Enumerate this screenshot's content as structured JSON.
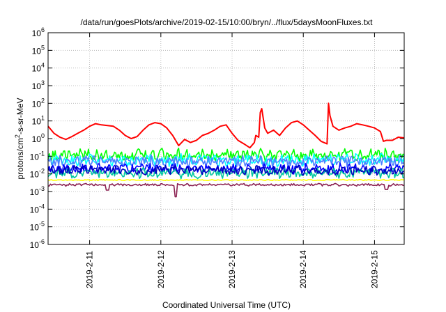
{
  "chart_data": {
    "type": "line",
    "title": "/data/run/goesPlots/archive/2019-02-15/10:00/bryn/../flux/5daysMoonFluxes.txt",
    "xlabel": "Coordinated Universal Time (UTC)",
    "ylabel": {
      "prefix": "protons/cm",
      "sup": "2",
      "suffix": "-s-sr-MeV"
    },
    "y_scale": "log",
    "ylim": [
      1e-06,
      1000000.0
    ],
    "y_ticks": [
      {
        "value": 1e-06,
        "base": "10",
        "exp": "-6"
      },
      {
        "value": 1e-05,
        "base": "10",
        "exp": "-5"
      },
      {
        "value": 0.0001,
        "base": "10",
        "exp": "-4"
      },
      {
        "value": 0.001,
        "base": "10",
        "exp": "-3"
      },
      {
        "value": 0.01,
        "base": "10",
        "exp": "-2"
      },
      {
        "value": 0.1,
        "base": "10",
        "exp": "-1"
      },
      {
        "value": 1.0,
        "base": "10",
        "exp": "0"
      },
      {
        "value": 10.0,
        "base": "10",
        "exp": "1"
      },
      {
        "value": 100.0,
        "base": "10",
        "exp": "2"
      },
      {
        "value": 1000.0,
        "base": "10",
        "exp": "3"
      },
      {
        "value": 10000.0,
        "base": "10",
        "exp": "4"
      },
      {
        "value": 100000.0,
        "base": "10",
        "exp": "5"
      },
      {
        "value": 1000000.0,
        "base": "10",
        "exp": "6"
      }
    ],
    "xlim": [
      "2019-02-10 10:00",
      "2019-02-15 10:00"
    ],
    "x_ticks": [
      {
        "value": "2019-02-11 00:00",
        "label": "2019-2-11"
      },
      {
        "value": "2019-02-12 00:00",
        "label": "2019-2-12"
      },
      {
        "value": "2019-02-13 00:00",
        "label": "2019-2-13"
      },
      {
        "value": "2019-02-14 00:00",
        "label": "2019-2-14"
      },
      {
        "value": "2019-02-15 00:00",
        "label": "2019-2-15"
      }
    ],
    "grid": true,
    "legend": "none",
    "series": [
      {
        "color": "#ff0000",
        "values": [
          [
            "2019-02-10 10:00",
            5
          ],
          [
            "2019-02-10 12:00",
            2
          ],
          [
            "2019-02-10 14:00",
            1.2
          ],
          [
            "2019-02-10 16:00",
            0.9
          ],
          [
            "2019-02-10 18:00",
            1.3
          ],
          [
            "2019-02-10 20:00",
            2
          ],
          [
            "2019-02-10 22:00",
            3
          ],
          [
            "2019-02-11 00:00",
            5
          ],
          [
            "2019-02-11 02:00",
            7
          ],
          [
            "2019-02-11 04:00",
            6
          ],
          [
            "2019-02-11 06:00",
            5.5
          ],
          [
            "2019-02-11 08:00",
            5
          ],
          [
            "2019-02-11 10:00",
            3
          ],
          [
            "2019-02-11 12:00",
            1.5
          ],
          [
            "2019-02-11 14:00",
            1
          ],
          [
            "2019-02-11 16:00",
            1.3
          ],
          [
            "2019-02-11 18:00",
            3
          ],
          [
            "2019-02-11 20:00",
            6
          ],
          [
            "2019-02-11 22:00",
            8
          ],
          [
            "2019-02-12 00:00",
            7
          ],
          [
            "2019-02-12 02:00",
            4
          ],
          [
            "2019-02-12 04:00",
            1.5
          ],
          [
            "2019-02-12 06:00",
            0.4
          ],
          [
            "2019-02-12 08:00",
            0.9
          ],
          [
            "2019-02-12 10:00",
            0.6
          ],
          [
            "2019-02-12 12:00",
            0.8
          ],
          [
            "2019-02-12 14:00",
            1.5
          ],
          [
            "2019-02-12 16:00",
            2
          ],
          [
            "2019-02-12 18:00",
            3
          ],
          [
            "2019-02-12 20:00",
            5
          ],
          [
            "2019-02-12 22:00",
            6
          ],
          [
            "2019-02-13 00:00",
            2
          ],
          [
            "2019-02-13 02:00",
            0.8
          ],
          [
            "2019-02-13 04:00",
            0.5
          ],
          [
            "2019-02-13 06:00",
            0.3
          ],
          [
            "2019-02-13 07:30",
            0.6
          ],
          [
            "2019-02-13 08:00",
            1.5
          ],
          [
            "2019-02-13 09:00",
            1.2
          ],
          [
            "2019-02-13 09:30",
            30
          ],
          [
            "2019-02-13 10:00",
            50
          ],
          [
            "2019-02-13 11:00",
            4
          ],
          [
            "2019-02-13 12:00",
            2
          ],
          [
            "2019-02-13 14:00",
            3
          ],
          [
            "2019-02-13 16:00",
            1.5
          ],
          [
            "2019-02-13 18:00",
            4
          ],
          [
            "2019-02-13 20:00",
            8
          ],
          [
            "2019-02-13 22:00",
            10
          ],
          [
            "2019-02-14 00:00",
            6
          ],
          [
            "2019-02-14 02:00",
            3
          ],
          [
            "2019-02-14 04:00",
            1.5
          ],
          [
            "2019-02-14 06:00",
            0.7
          ],
          [
            "2019-02-14 08:00",
            0.5
          ],
          [
            "2019-02-14 08:30",
            100
          ],
          [
            "2019-02-14 09:00",
            20
          ],
          [
            "2019-02-14 10:00",
            5
          ],
          [
            "2019-02-14 12:00",
            3
          ],
          [
            "2019-02-14 14:00",
            4
          ],
          [
            "2019-02-14 16:00",
            5
          ],
          [
            "2019-02-14 18:00",
            7
          ],
          [
            "2019-02-14 20:00",
            6
          ],
          [
            "2019-02-14 22:00",
            5
          ],
          [
            "2019-02-15 00:00",
            4
          ],
          [
            "2019-02-15 02:00",
            2.5
          ],
          [
            "2019-02-15 03:00",
            0.7
          ],
          [
            "2019-02-15 04:00",
            0.8
          ],
          [
            "2019-02-15 06:00",
            0.8
          ],
          [
            "2019-02-15 08:00",
            1.2
          ],
          [
            "2019-02-15 10:00",
            1.1
          ]
        ]
      },
      {
        "color": "#00ff00",
        "base": 0.12,
        "amp": 0.6,
        "seed": 3
      },
      {
        "color": "#00ffff",
        "base": 0.06,
        "amp": 0.6,
        "seed": 7
      },
      {
        "color": "#4c7fff",
        "base": 0.05,
        "amp": 0.55,
        "seed": 11
      },
      {
        "color": "#0000ff",
        "base": 0.02,
        "amp": 0.5,
        "seed": 13
      },
      {
        "color": "#00c8a0",
        "base": 0.011,
        "amp": 0.5,
        "seed": 17
      },
      {
        "color": "#0000c0",
        "base": 0.016,
        "amp": 0.45,
        "seed": 19
      },
      {
        "color": "#ffff00",
        "base": 0.0045,
        "amp": 0.05,
        "seed": 23
      },
      {
        "color": "#8b2252",
        "base": 0.0024,
        "amp": 0.12,
        "seed": 29,
        "dips": [
          [
            "2019-02-11 06:00",
            0.0012
          ],
          [
            "2019-02-12 05:00",
            0.0005
          ],
          [
            "2019-02-15 04:00",
            0.0013
          ]
        ]
      }
    ]
  }
}
